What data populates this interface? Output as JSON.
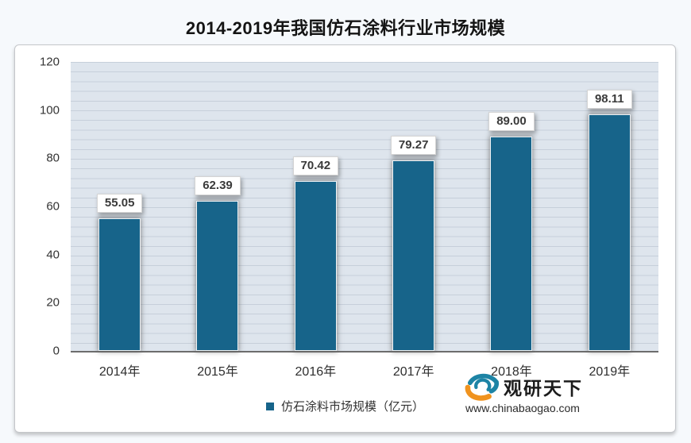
{
  "title": "2014-2019年我国仿石涂料行业市场规模",
  "chart_data": {
    "type": "bar",
    "categories": [
      "2014年",
      "2015年",
      "2016年",
      "2017年",
      "2018年",
      "2019年"
    ],
    "values": [
      55.05,
      62.39,
      70.42,
      79.27,
      89.0,
      98.11
    ],
    "value_labels": [
      "55.05",
      "62.39",
      "70.42",
      "79.27",
      "89.00",
      "98.11"
    ],
    "title": "2014-2019年我国仿石涂料行业市场规模",
    "xlabel": "",
    "ylabel": "",
    "ylim": [
      0,
      120
    ],
    "yticks": [
      0,
      20,
      40,
      60,
      80,
      100,
      120
    ],
    "grid": true,
    "legend_position": "bottom",
    "legend": [
      "仿石涂料市场规模（亿元）"
    ],
    "bar_color": "#17648a"
  },
  "legend": {
    "label": "仿石涂料市场规模（亿元）",
    "swatch_color": "#17648a"
  },
  "watermark": {
    "brand": "观研天下",
    "url": "www.chinabaogao.com",
    "icon": "swirl-logo-icon",
    "icon_teal": "#1d84a5",
    "icon_orange": "#f0931f"
  },
  "colors": {
    "page_background": "#f6f9fc",
    "card_background": "#ffffff",
    "plot_background": "#dee5ed",
    "gridline": "#c6cfda",
    "axis_line": "#6d6d6d",
    "bar": "#17648a",
    "title_text": "#141414"
  }
}
